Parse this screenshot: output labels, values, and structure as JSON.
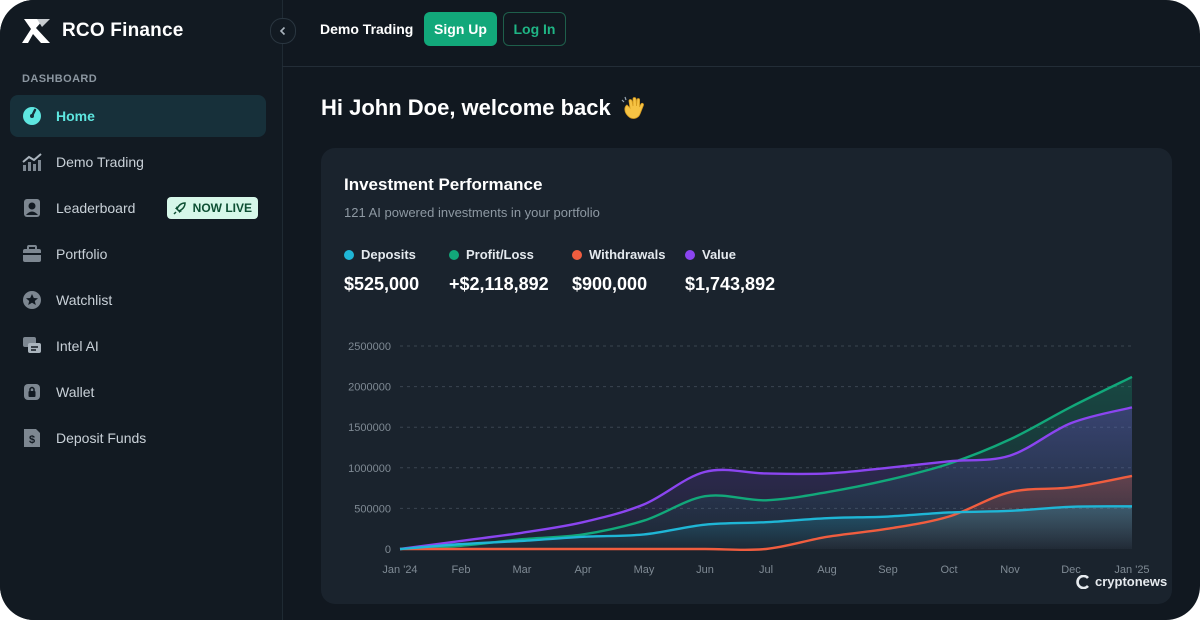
{
  "brand": {
    "name": "RCO Finance"
  },
  "sidebar": {
    "section_label": "DASHBOARD",
    "items": [
      {
        "label": "Home",
        "icon": "gauge-icon"
      },
      {
        "label": "Demo Trading",
        "icon": "trend-chart-icon"
      },
      {
        "label": "Leaderboard",
        "icon": "user-icon",
        "badge": "NOW LIVE"
      },
      {
        "label": "Portfolio",
        "icon": "briefcase-icon"
      },
      {
        "label": "Watchlist",
        "icon": "star-icon"
      },
      {
        "label": "Intel AI",
        "icon": "chat-icon"
      },
      {
        "label": "Wallet",
        "icon": "lock-icon"
      },
      {
        "label": "Deposit Funds",
        "icon": "dollar-doc-icon"
      }
    ]
  },
  "topbar": {
    "demo_label": "Demo Trading",
    "signup_label": "Sign Up",
    "login_label": "Log In"
  },
  "greeting": "Hi John Doe, welcome back",
  "card": {
    "title": "Investment Performance",
    "subtitle": "121 AI powered investments in your portfolio",
    "stats": [
      {
        "label": "Deposits",
        "value": "$525,000",
        "color": "#1fb6d6"
      },
      {
        "label": "Profit/Loss",
        "value": "+$2,118,892",
        "color": "#12a87a"
      },
      {
        "label": "Withdrawals",
        "value": "$900,000",
        "color": "#f05d3f"
      },
      {
        "label": "Value",
        "value": "$1,743,892",
        "color": "#8b45f0"
      }
    ]
  },
  "chart_data": {
    "type": "area",
    "categories": [
      "Jan '24",
      "Feb",
      "Mar",
      "Apr",
      "May",
      "Jun",
      "Jul",
      "Aug",
      "Sep",
      "Oct",
      "Nov",
      "Dec",
      "Jan '25"
    ],
    "y_ticks": [
      "0",
      "500000",
      "1000000",
      "1500000",
      "2000000",
      "2500000"
    ],
    "ylim": [
      0,
      2500000
    ],
    "grid": true,
    "series": [
      {
        "name": "Deposits",
        "color": "#1fb6d6",
        "values": [
          0,
          60000,
          100000,
          150000,
          180000,
          300000,
          330000,
          380000,
          400000,
          450000,
          470000,
          520000,
          525000
        ]
      },
      {
        "name": "Profit/Loss",
        "color": "#12a87a",
        "values": [
          0,
          40000,
          120000,
          180000,
          350000,
          650000,
          600000,
          700000,
          850000,
          1050000,
          1350000,
          1750000,
          2118892
        ]
      },
      {
        "name": "Withdrawals",
        "color": "#f05d3f",
        "values": [
          0,
          0,
          0,
          0,
          0,
          0,
          0,
          150000,
          250000,
          400000,
          700000,
          760000,
          900000
        ]
      },
      {
        "name": "Value",
        "color": "#8b45f0",
        "values": [
          0,
          100000,
          200000,
          330000,
          550000,
          950000,
          930000,
          930000,
          1000000,
          1080000,
          1150000,
          1550000,
          1743892
        ]
      }
    ]
  },
  "watermark": "cryptonews"
}
